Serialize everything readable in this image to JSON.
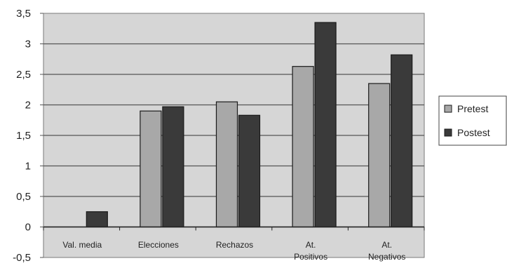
{
  "chart_data": {
    "type": "bar",
    "title": "",
    "xlabel": "",
    "ylabel": "",
    "categories": [
      [
        "Val. media"
      ],
      [
        "Elecciones"
      ],
      [
        "Rechazos"
      ],
      [
        "At.",
        "Positivos"
      ],
      [
        "At.",
        "Negativos"
      ]
    ],
    "series": [
      {
        "name": "Pretest",
        "color": "#a8a8a8",
        "values": [
          0,
          1.9,
          2.05,
          2.63,
          2.35
        ]
      },
      {
        "name": "Postest",
        "color": "#3a3a3a",
        "values": [
          0.25,
          1.97,
          1.83,
          3.35,
          2.82
        ]
      }
    ],
    "ylim": [
      -0.5,
      3.5
    ],
    "yticks": [
      "3,5",
      "3",
      "2,5",
      "2",
      "1,5",
      "1",
      "0,5",
      "0",
      "-0,5"
    ],
    "ytick_values": [
      3.5,
      3,
      2.5,
      2,
      1.5,
      1,
      0.5,
      0,
      -0.5
    ],
    "grid": true,
    "legend_position": "right",
    "plot_background": "#d6d6d6"
  }
}
